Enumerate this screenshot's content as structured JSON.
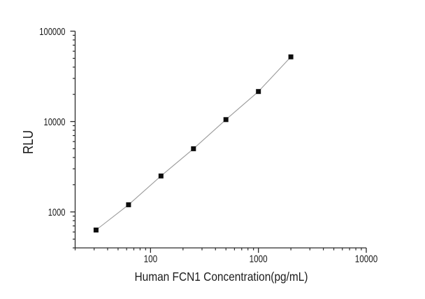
{
  "chart_data": {
    "type": "line",
    "title": "",
    "xlabel": "Human FCN1 Concentration(pg/mL)",
    "ylabel": "RLU",
    "xscale": "log",
    "yscale": "log",
    "xlim": [
      20,
      10000
    ],
    "ylim": [
      400,
      100000
    ],
    "x_major_ticks": [
      100,
      1000,
      10000
    ],
    "y_major_ticks": [
      1000,
      10000,
      100000
    ],
    "grid": false,
    "legend": "none",
    "points": [
      {
        "x": 31.25,
        "y": 630
      },
      {
        "x": 62.5,
        "y": 1200
      },
      {
        "x": 125,
        "y": 2500
      },
      {
        "x": 250,
        "y": 5000
      },
      {
        "x": 500,
        "y": 10500
      },
      {
        "x": 1000,
        "y": 21500
      },
      {
        "x": 2000,
        "y": 52000
      }
    ],
    "marker": {
      "shape": "square",
      "color": "#0d0d0d",
      "size": 7
    },
    "line": {
      "color": "#9b9b9b",
      "width": 1.1
    },
    "axis_color": "#2b2b2b",
    "text_color": "#1c1c1c",
    "background": "#ffffff"
  }
}
